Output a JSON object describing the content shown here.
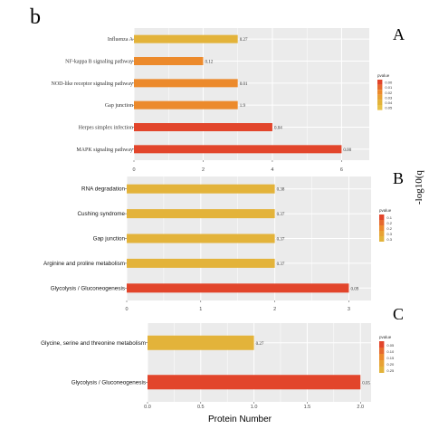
{
  "figure_label": "b",
  "side_label": "-log10(q",
  "x_axis_title": "Protein Number",
  "colors": {
    "yellow": "#e3b33a",
    "orange": "#ec8a2c",
    "red": "#e2452b",
    "panel_bg": "#ebebeb",
    "grid": "#ffffff"
  },
  "chart_data": [
    {
      "type": "bar",
      "panel_label": "A",
      "orientation": "horizontal",
      "categories": [
        "Influenza A",
        "NF-kappa B signaling pathway",
        "NOD-like receptor signaling pathway",
        "Gap junction",
        "Herpes simplex infection",
        "MAPK signaling pathway"
      ],
      "values": [
        3,
        2,
        3,
        3,
        4,
        6
      ],
      "bar_labels": [
        "0.27",
        "0.12",
        "0.01",
        "1.9",
        "0.04",
        "0.00"
      ],
      "bar_colors": [
        "#e3b33a",
        "#ec8a2c",
        "#ec8a2c",
        "#ec8a2c",
        "#e2452b",
        "#e2452b"
      ],
      "xlim": [
        0,
        6.8
      ],
      "ticks": [
        0,
        2,
        4,
        6
      ],
      "tick_labels": [
        "0",
        "2",
        "4",
        "6"
      ],
      "legend": {
        "title": "pvalue",
        "labels": [
          "0.00",
          "0.01",
          "0.02",
          "0.03",
          "0.04",
          "0.05"
        ],
        "placement": "right"
      }
    },
    {
      "type": "bar",
      "panel_label": "B",
      "orientation": "horizontal",
      "categories": [
        "RNA degradation",
        "Cushing syndrome",
        "Gap junction",
        "Arginine and proline metabolism",
        "Glycolysis / Gluconeogenesis"
      ],
      "values": [
        2,
        2,
        2,
        2,
        3
      ],
      "bar_labels": [
        "0.38",
        "0.37",
        "0.37",
        "0.37",
        "0.09"
      ],
      "bar_colors": [
        "#e3b33a",
        "#e3b33a",
        "#e3b33a",
        "#e3b33a",
        "#e2452b"
      ],
      "xlim": [
        0,
        3.3
      ],
      "ticks": [
        0,
        1,
        2,
        3
      ],
      "tick_labels": [
        "0",
        "1",
        "2",
        "3"
      ],
      "legend": {
        "title": "pvalue",
        "labels": [
          "0.1",
          "0.2",
          "0.2",
          "0.3",
          "0.3"
        ],
        "placement": "right"
      }
    },
    {
      "type": "bar",
      "panel_label": "C",
      "orientation": "horizontal",
      "categories": [
        "Glycine, serine and threonine metabolism",
        "Glycolysis / Gluconeogenesis"
      ],
      "values": [
        1,
        2
      ],
      "bar_labels": [
        "0.27",
        "0.05"
      ],
      "bar_colors": [
        "#e3b33a",
        "#e2452b"
      ],
      "xlim": [
        0,
        2.1
      ],
      "ticks": [
        0,
        0.5,
        1,
        1.5,
        2
      ],
      "tick_labels": [
        "0.0",
        "0.5",
        "1.0",
        "1.5",
        "2.0"
      ],
      "legend": {
        "title": "pvalue",
        "labels": [
          "0.05",
          "0.10",
          "0.15",
          "0.20",
          "0.25"
        ],
        "placement": "right"
      }
    }
  ]
}
